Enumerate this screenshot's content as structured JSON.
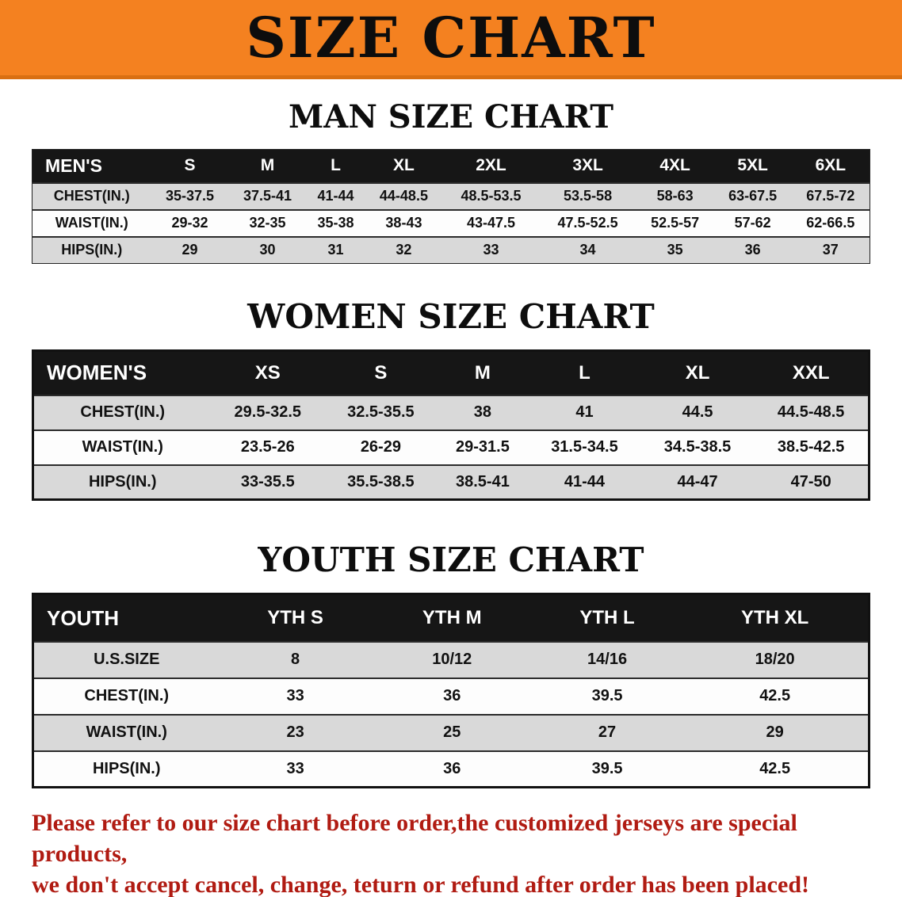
{
  "banner": {
    "title": "SIZE CHART",
    "bg_color": "#f48120"
  },
  "chart_data": [
    {
      "type": "table",
      "title": "MAN SIZE CHART",
      "header_label": "MEN'S",
      "columns": [
        "S",
        "M",
        "L",
        "XL",
        "2XL",
        "3XL",
        "4XL",
        "5XL",
        "6XL"
      ],
      "rows": [
        {
          "label": "CHEST(IN.)",
          "values": [
            "35-37.5",
            "37.5-41",
            "41-44",
            "44-48.5",
            "48.5-53.5",
            "53.5-58",
            "58-63",
            "63-67.5",
            "67.5-72"
          ]
        },
        {
          "label": "WAIST(IN.)",
          "values": [
            "29-32",
            "32-35",
            "35-38",
            "38-43",
            "43-47.5",
            "47.5-52.5",
            "52.5-57",
            "57-62",
            "62-66.5"
          ]
        },
        {
          "label": "HIPS(IN.)",
          "values": [
            "29",
            "30",
            "31",
            "32",
            "33",
            "34",
            "35",
            "36",
            "37"
          ]
        }
      ]
    },
    {
      "type": "table",
      "title": "WOMEN SIZE CHART",
      "header_label": "WOMEN'S",
      "columns": [
        "XS",
        "S",
        "M",
        "L",
        "XL",
        "XXL"
      ],
      "rows": [
        {
          "label": "CHEST(IN.)",
          "values": [
            "29.5-32.5",
            "32.5-35.5",
            "38",
            "41",
            "44.5",
            "44.5-48.5"
          ]
        },
        {
          "label": "WAIST(IN.)",
          "values": [
            "23.5-26",
            "26-29",
            "29-31.5",
            "31.5-34.5",
            "34.5-38.5",
            "38.5-42.5"
          ]
        },
        {
          "label": "HIPS(IN.)",
          "values": [
            "33-35.5",
            "35.5-38.5",
            "38.5-41",
            "41-44",
            "44-47",
            "47-50"
          ]
        }
      ]
    },
    {
      "type": "table",
      "title": "YOUTH SIZE CHART",
      "header_label": "YOUTH",
      "columns": [
        "YTH S",
        "YTH M",
        "YTH L",
        "YTH XL"
      ],
      "rows": [
        {
          "label": "U.S.SIZE",
          "values": [
            "8",
            "10/12",
            "14/16",
            "18/20"
          ]
        },
        {
          "label": "CHEST(IN.)",
          "values": [
            "33",
            "36",
            "39.5",
            "42.5"
          ]
        },
        {
          "label": "WAIST(IN.)",
          "values": [
            "23",
            "25",
            "27",
            "29"
          ]
        },
        {
          "label": "HIPS(IN.)",
          "values": [
            "33",
            "36",
            "39.5",
            "42.5"
          ]
        }
      ]
    }
  ],
  "footer": {
    "line1": "Please refer to our size chart before order,the customized jerseys are special products,",
    "line2": "we don't accept cancel, change, teturn or refund after order has been placed!",
    "text_color": "#b01b12"
  },
  "colors": {
    "banner_orange": "#f48120",
    "table_header_bg": "#161616",
    "row_alt_gray": "#d9d9d9"
  }
}
